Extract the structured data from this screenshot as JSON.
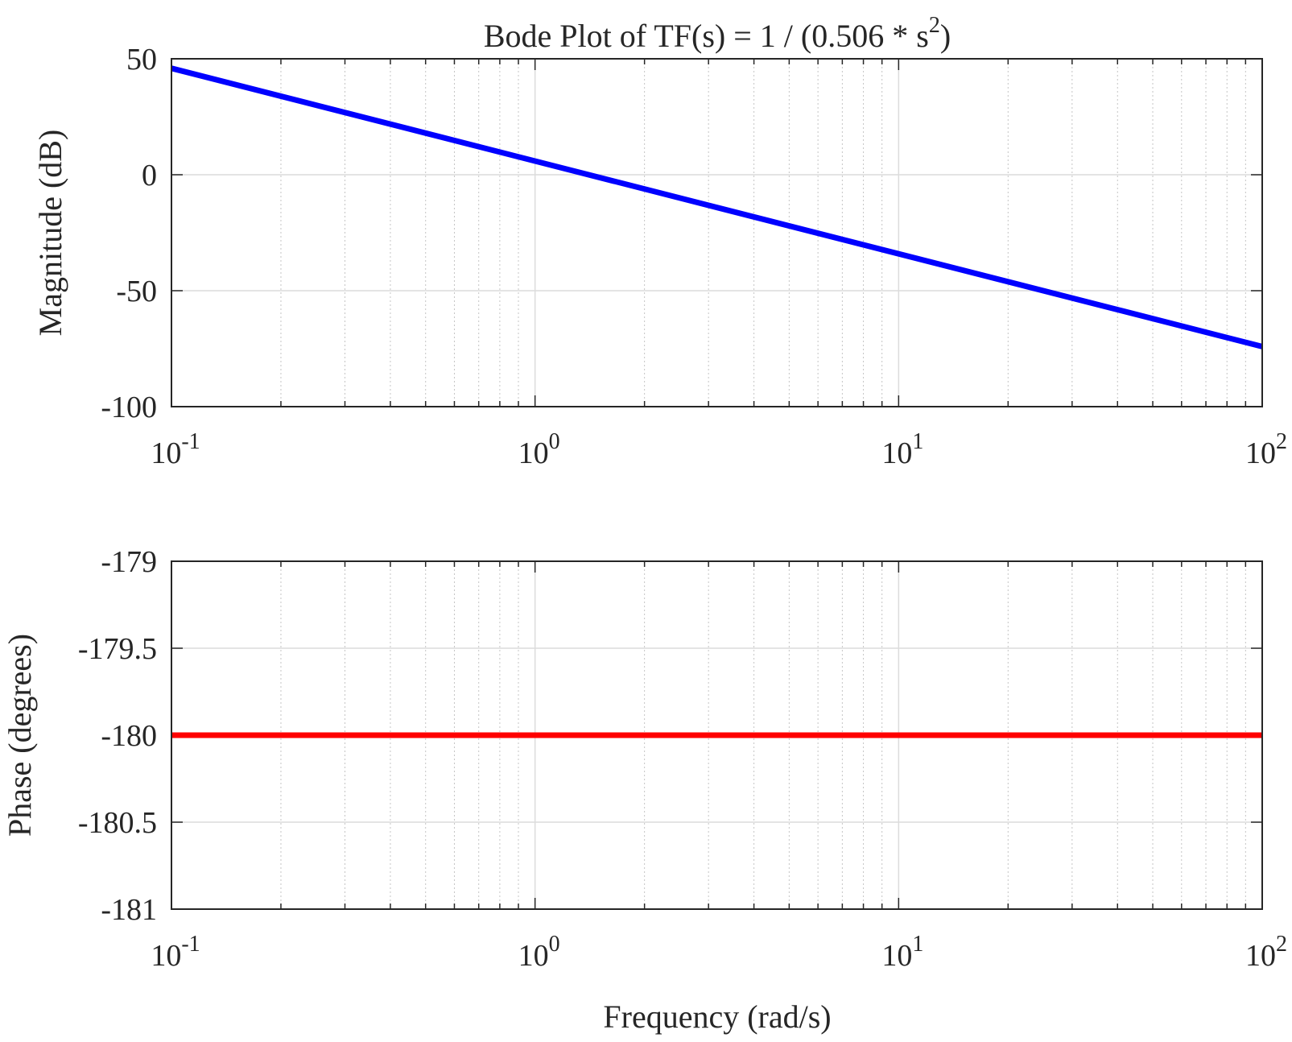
{
  "chart_data": {
    "type": "line",
    "title": {
      "main": "Bode Plot of TF(s) = 1 / (0.506 * s",
      "superscript": "2",
      "suffix": ")"
    },
    "xlabel": "Frequency (rad/s)",
    "xscale": "log",
    "xlim": [
      0.1,
      100
    ],
    "x_ticks": [
      {
        "base": "10",
        "exponent": "-1",
        "value": 0.1
      },
      {
        "base": "10",
        "exponent": "0",
        "value": 1
      },
      {
        "base": "10",
        "exponent": "1",
        "value": 10
      },
      {
        "base": "10",
        "exponent": "2",
        "value": 100
      }
    ],
    "grid": true,
    "subplots": [
      {
        "name": "magnitude",
        "ylabel": "Magnitude (dB)",
        "ylim": [
          -100,
          50
        ],
        "y_ticks": [
          {
            "label": "50",
            "value": 50
          },
          {
            "label": "0",
            "value": 0
          },
          {
            "label": "-50",
            "value": -50
          },
          {
            "label": "-100",
            "value": -100
          }
        ],
        "series": [
          {
            "color": "#0000ff",
            "x": [
              0.1,
              100
            ],
            "y": [
              45.9,
              -74.1
            ]
          }
        ]
      },
      {
        "name": "phase",
        "ylabel": "Phase (degrees)",
        "ylim": [
          -181,
          -179
        ],
        "y_ticks": [
          {
            "label": "-179",
            "value": -179
          },
          {
            "label": "-179.5",
            "value": -179.5
          },
          {
            "label": "-180",
            "value": -180
          },
          {
            "label": "-180.5",
            "value": -180.5
          },
          {
            "label": "-181",
            "value": -181
          }
        ],
        "series": [
          {
            "color": "#ff0000",
            "x": [
              0.1,
              100
            ],
            "y": [
              -180,
              -180
            ]
          }
        ]
      }
    ]
  }
}
